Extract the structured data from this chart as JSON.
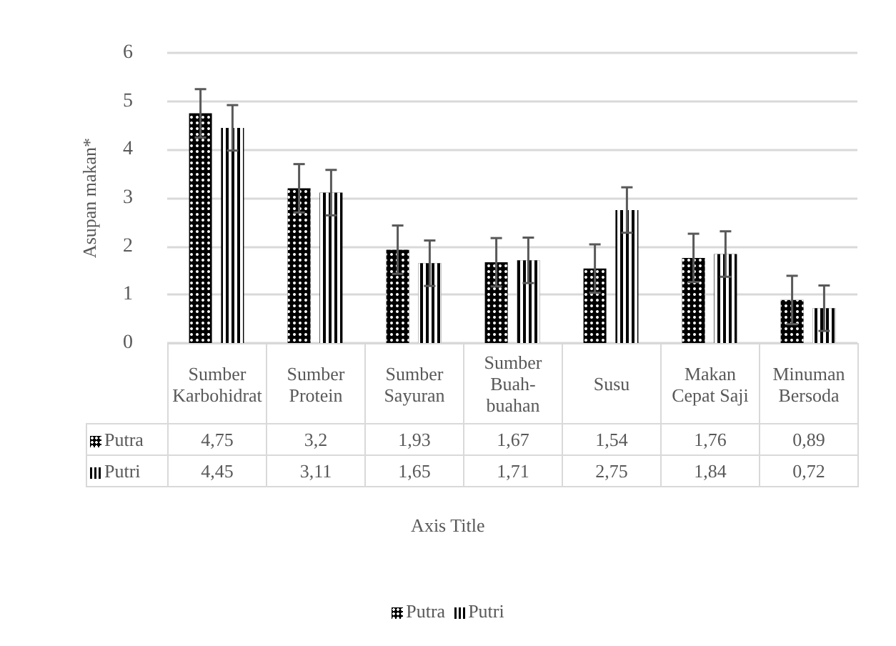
{
  "chart_data": {
    "type": "bar",
    "ylabel": "Asupan makan*",
    "annotations": [
      "Axis Title"
    ],
    "categories": [
      "Sumber Karbohidrat",
      "Sumber Protein",
      "Sumber Sayuran",
      "Sumber Buah-buahan",
      "Susu",
      "Makan Cepat Saji",
      "Minuman Bersoda"
    ],
    "series": [
      {
        "name": "Putra",
        "color": "#000000",
        "values": [
          4.75,
          3.2,
          1.93,
          1.67,
          1.54,
          1.76,
          0.89
        ],
        "value_labels": [
          "4,75",
          "3,2",
          "1,93",
          "1,67",
          "1,54",
          "1,76",
          "0,89"
        ],
        "errors": [
          0.5,
          0.5,
          0.5,
          0.5,
          0.5,
          0.5,
          0.5
        ]
      },
      {
        "name": "Putri",
        "color": "#000000",
        "values": [
          4.45,
          3.11,
          1.65,
          1.71,
          2.75,
          1.84,
          0.72
        ],
        "value_labels": [
          "4,45",
          "3,11",
          "1,65",
          "1,71",
          "2,75",
          "1,84",
          "0,72"
        ],
        "errors": [
          0.47,
          0.47,
          0.47,
          0.47,
          0.47,
          0.47,
          0.47
        ]
      }
    ],
    "ylim": [
      0,
      6
    ],
    "yticks": [
      0,
      1,
      2,
      3,
      4,
      5,
      6
    ],
    "grid": "y",
    "legend": "bottom"
  }
}
